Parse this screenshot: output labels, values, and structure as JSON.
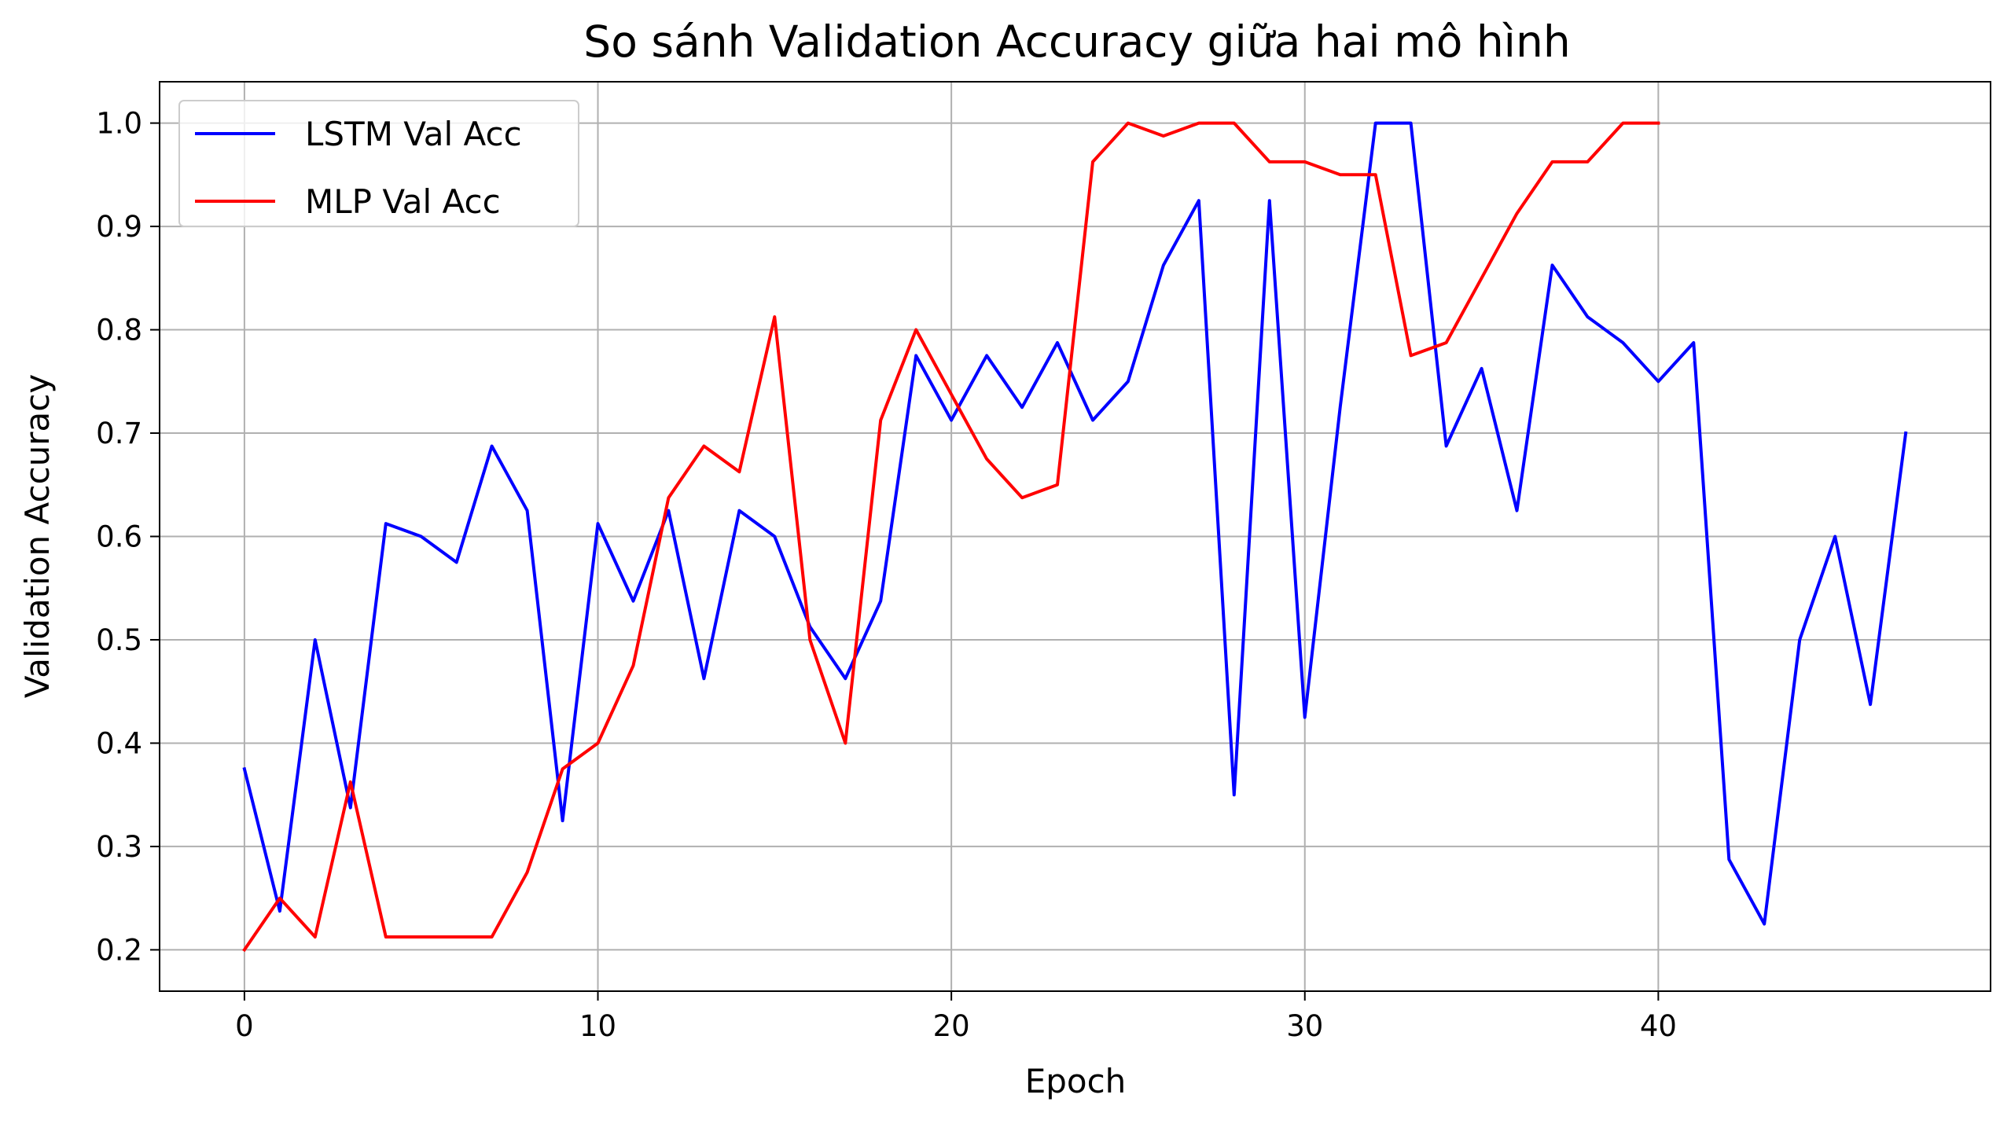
{
  "chart_data": {
    "type": "line",
    "title": "So sánh Validation Accuracy giữa hai mô hình",
    "xlabel": "Epoch",
    "ylabel": "Validation Accuracy",
    "xlim": [
      -2.4,
      49.4
    ],
    "ylim": [
      0.16,
      1.04
    ],
    "xticks": [
      0,
      10,
      20,
      30,
      40
    ],
    "yticks": [
      0.2,
      0.3,
      0.4,
      0.5,
      0.6,
      0.7,
      0.8,
      0.9,
      1.0
    ],
    "grid": true,
    "legend_position": "top-left",
    "series": [
      {
        "name": "LSTM Val Acc",
        "color": "#0000ff",
        "x": [
          0,
          1,
          2,
          3,
          4,
          5,
          6,
          7,
          8,
          9,
          10,
          11,
          12,
          13,
          14,
          15,
          16,
          17,
          18,
          19,
          20,
          21,
          22,
          23,
          24,
          25,
          26,
          27,
          28,
          29,
          30,
          31,
          32,
          33,
          34,
          35,
          36,
          37,
          38,
          39,
          40,
          41,
          42,
          43,
          44,
          45,
          46,
          47
        ],
        "values": [
          0.375,
          0.2375,
          0.5,
          0.3375,
          0.6125,
          0.6,
          0.575,
          0.6875,
          0.625,
          0.325,
          0.6125,
          0.5375,
          0.625,
          0.4625,
          0.625,
          0.6,
          0.5125,
          0.4625,
          0.5375,
          0.775,
          0.7125,
          0.775,
          0.725,
          0.7875,
          0.7125,
          0.75,
          0.8625,
          0.925,
          0.35,
          0.925,
          0.425,
          0.725,
          1.0,
          1.0,
          0.6875,
          0.7625,
          0.625,
          0.8625,
          0.8125,
          0.7875,
          0.75,
          0.7875,
          0.2875,
          0.225,
          0.5,
          0.6,
          0.4375,
          0.7
        ]
      },
      {
        "name": "MLP Val Acc",
        "color": "#ff0000",
        "x": [
          0,
          1,
          2,
          3,
          4,
          5,
          6,
          7,
          8,
          9,
          10,
          11,
          12,
          13,
          14,
          15,
          16,
          17,
          18,
          19,
          20,
          21,
          22,
          23,
          24,
          25,
          26,
          27,
          28,
          29,
          30,
          31,
          32,
          33,
          34,
          35,
          36,
          37,
          38,
          39,
          40
        ],
        "values": [
          0.2,
          0.25,
          0.2125,
          0.3625,
          0.2125,
          0.2125,
          0.2125,
          0.2125,
          0.275,
          0.375,
          0.4,
          0.475,
          0.6375,
          0.6875,
          0.6625,
          0.8125,
          0.5,
          0.4,
          0.7125,
          0.8,
          0.7375,
          0.675,
          0.6375,
          0.65,
          0.9625,
          1.0,
          0.9875,
          1.0,
          1.0,
          0.9625,
          0.9625,
          0.95,
          0.95,
          0.775,
          0.7875,
          0.85,
          0.9125,
          0.9625,
          0.9625,
          1.0,
          1.0
        ]
      }
    ]
  }
}
